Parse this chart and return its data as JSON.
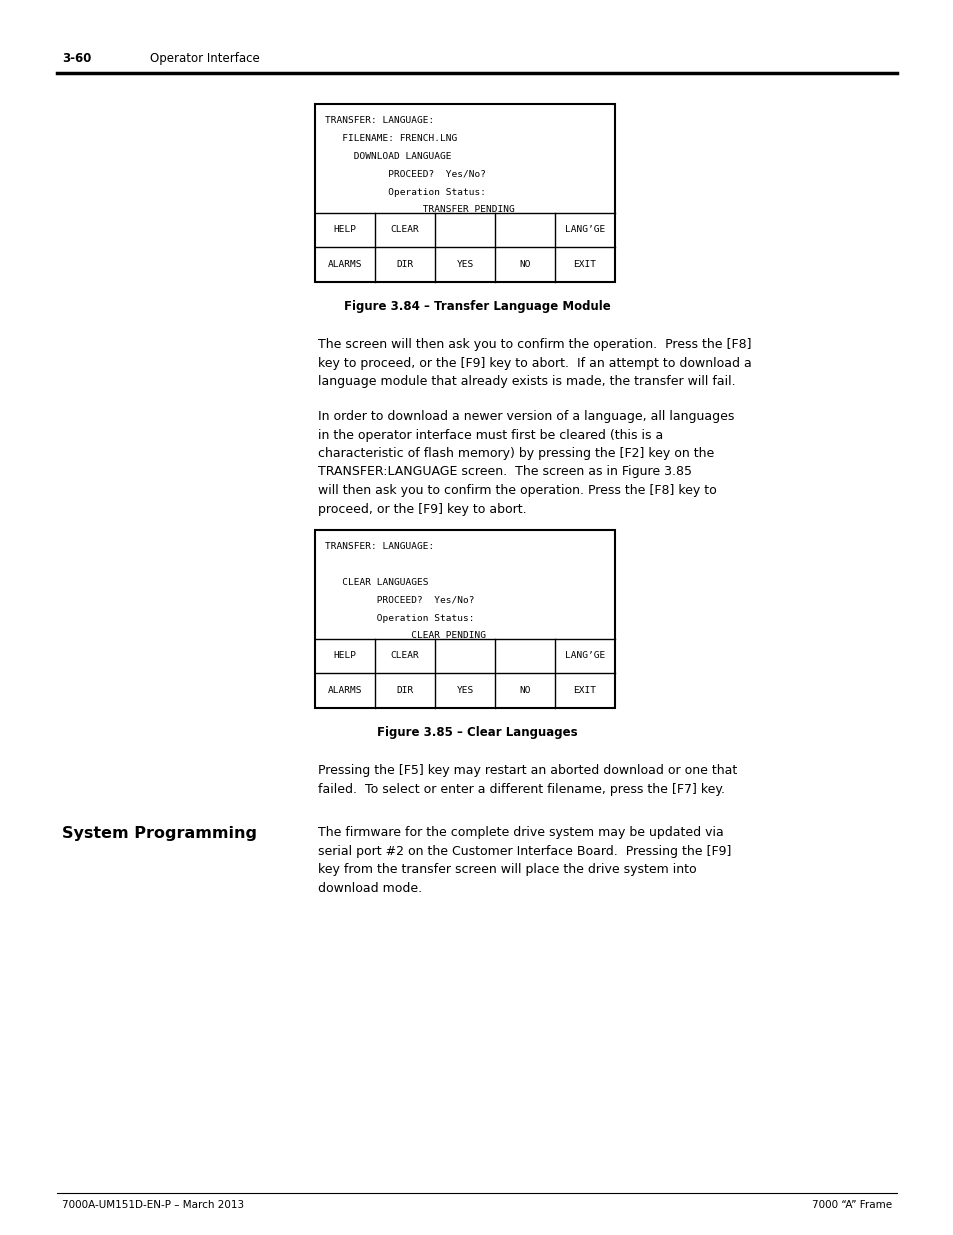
{
  "page_number": "3-60",
  "page_header": "Operator Interface",
  "footer_left": "7000A-UM151D-EN-P – March 2013",
  "footer_right": "7000 “A” Frame",
  "fig1_caption": "Figure 3.84 – Transfer Language Module",
  "fig1_screen_lines": [
    "TRANSFER: LANGUAGE:",
    "   FILENAME: FRENCH.LNG",
    "     DOWNLOAD LANGUAGE",
    "           PROCEED?  Yes/No?",
    "           Operation Status:",
    "                 TRANSFER PENDING"
  ],
  "fig1_buttons_row1": [
    "HELP",
    "CLEAR",
    "",
    "",
    "LANG’GE"
  ],
  "fig1_buttons_row2": [
    "ALARMS",
    "DIR",
    "YES",
    "NO",
    "EXIT"
  ],
  "fig2_caption": "Figure 3.85 – Clear Languages",
  "fig2_screen_lines": [
    "TRANSFER: LANGUAGE:",
    "",
    "   CLEAR LANGUAGES",
    "         PROCEED?  Yes/No?",
    "         Operation Status:",
    "               CLEAR PENDING"
  ],
  "fig2_buttons_row1": [
    "HELP",
    "CLEAR",
    "",
    "",
    "LANG’GE"
  ],
  "fig2_buttons_row2": [
    "ALARMS",
    "DIR",
    "YES",
    "NO",
    "EXIT"
  ],
  "section_heading": "System Programming",
  "body1": "The screen will then ask you to confirm the operation.  Press the [F8]\nkey to proceed, or the [F9] key to abort.  If an attempt to download a\nlanguage module that already exists is made, the transfer will fail.",
  "body2": "In order to download a newer version of a language, all languages\nin the operator interface must first be cleared (this is a\ncharacteristic of flash memory) by pressing the [F2] key on the\nTRANSFER:LANGUAGE screen.  The screen as in Figure 3.85\nwill then ask you to confirm the operation. Press the [F8] key to\nproceed, or the [F9] key to abort.",
  "body3": "Pressing the [F5] key may restart an aborted download or one that\nfailed.  To select or enter a different filename, press the [F7] key.",
  "body4": "The firmware for the complete drive system may be updated via\nserial port #2 on the Customer Interface Board.  Pressing the [F9]\nkey from the transfer screen will place the drive system into\ndownload mode.",
  "bg_color": "#ffffff",
  "text_color": "#000000"
}
